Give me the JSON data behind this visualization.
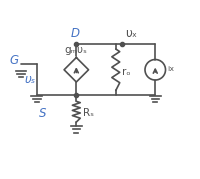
{
  "bg_color": "#ffffff",
  "wire_color": "#505050",
  "label_color": "#4472c4",
  "component_color": "#505050",
  "G_label": "G",
  "S_label": "S",
  "D_label": "D",
  "vs_label": "υₛ",
  "gmvs_label": "gₘυₛ",
  "vx_label": "υₓ",
  "ix_label": "ᵢₓ",
  "ro_label": "rₒ",
  "rs_label": "Rₛ",
  "figw": 2.0,
  "figh": 1.79,
  "dpi": 100
}
